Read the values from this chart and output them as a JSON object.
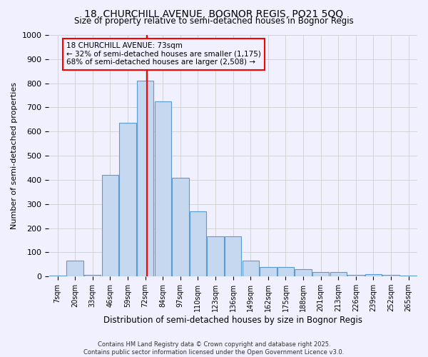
{
  "title1": "18, CHURCHILL AVENUE, BOGNOR REGIS, PO21 5QQ",
  "title2": "Size of property relative to semi-detached houses in Bognor Regis",
  "xlabel": "Distribution of semi-detached houses by size in Bognor Regis",
  "ylabel": "Number of semi-detached properties",
  "categories": [
    "7sqm",
    "20sqm",
    "33sqm",
    "46sqm",
    "59sqm",
    "72sqm",
    "84sqm",
    "97sqm",
    "110sqm",
    "123sqm",
    "136sqm",
    "149sqm",
    "162sqm",
    "175sqm",
    "188sqm",
    "201sqm",
    "213sqm",
    "226sqm",
    "239sqm",
    "252sqm",
    "265sqm"
  ],
  "values": [
    5,
    65,
    8,
    420,
    635,
    810,
    725,
    408,
    270,
    165,
    165,
    65,
    40,
    40,
    30,
    17,
    17,
    8,
    10,
    8,
    5
  ],
  "bar_color": "#c5d8f0",
  "bar_edge_color": "#5b9bd5",
  "annotation_title": "18 CHURCHILL AVENUE: 73sqm",
  "annotation_line1": "← 32% of semi-detached houses are smaller (1,175)",
  "annotation_line2": "68% of semi-detached houses are larger (2,508) →",
  "footer1": "Contains HM Land Registry data © Crown copyright and database right 2025.",
  "footer2": "Contains public sector information licensed under the Open Government Licence v3.0.",
  "ylim": [
    0,
    1000
  ],
  "yticks": [
    0,
    100,
    200,
    300,
    400,
    500,
    600,
    700,
    800,
    900,
    1000
  ],
  "bg_color": "#f0f0ff",
  "grid_color": "#d0d0d0",
  "property_line_index": 5.08
}
